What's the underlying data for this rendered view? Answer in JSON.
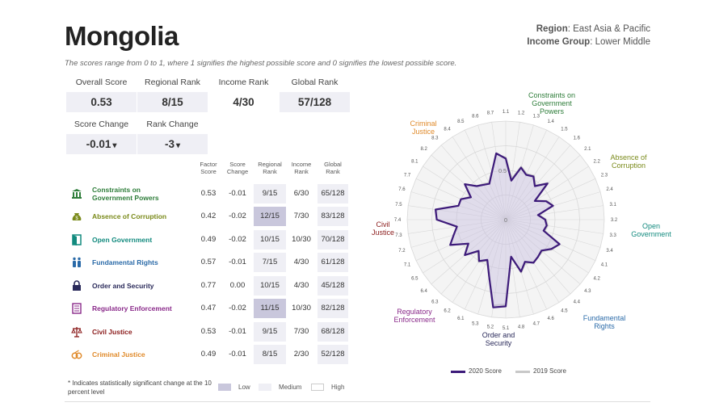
{
  "header": {
    "title": "Mongolia",
    "region_label": "Region",
    "region_value": "East Asia & Pacific",
    "income_label": "Income Group",
    "income_value": "Lower Middle",
    "subtitle": "The scores range from 0 to 1, where 1 signifies the highest possible score and 0 signifies the lowest possible score."
  },
  "summary": {
    "overall_score_label": "Overall Score",
    "overall_score": "0.53",
    "regional_rank_label": "Regional Rank",
    "regional_rank": "8/15",
    "income_rank_label": "Income Rank",
    "income_rank": "4/30",
    "global_rank_label": "Global Rank",
    "global_rank": "57/128",
    "score_change_label": "Score Change",
    "score_change": "-0.01",
    "rank_change_label": "Rank Change",
    "rank_change": "-3",
    "down_arrow": "▾"
  },
  "factor_headers": {
    "factor_score": [
      "Factor",
      "Score"
    ],
    "score_change": [
      "Score",
      "Change"
    ],
    "regional_rank": [
      "Regional",
      "Rank"
    ],
    "income_rank": [
      "Income",
      "Rank"
    ],
    "global_rank": [
      "Global",
      "Rank"
    ]
  },
  "factors": [
    {
      "name": [
        "Constraints on",
        "Government Powers"
      ],
      "color": "#2e7d3a",
      "score": "0.53",
      "change": "-0.01",
      "regional": "9/15",
      "income": "6/30",
      "global": "65/128",
      "shade": [
        "light",
        "white",
        "light"
      ]
    },
    {
      "name": [
        "Absence of Corruption"
      ],
      "color": "#7a8a1a",
      "score": "0.42",
      "change": "-0.02",
      "regional": "12/15",
      "income": "7/30",
      "global": "83/128",
      "shade": [
        "dark",
        "white",
        "light"
      ]
    },
    {
      "name": [
        "Open Government"
      ],
      "color": "#128a7e",
      "score": "0.49",
      "change": "-0.02",
      "regional": "10/15",
      "income": "10/30",
      "global": "70/128",
      "shade": [
        "light",
        "white",
        "light"
      ]
    },
    {
      "name": [
        "Fundamental Rights"
      ],
      "color": "#2a6aa8",
      "score": "0.57",
      "change": "-0.01",
      "regional": "7/15",
      "income": "4/30",
      "global": "61/128",
      "shade": [
        "light",
        "white",
        "light"
      ]
    },
    {
      "name": [
        "Order and Security"
      ],
      "color": "#2a2a5a",
      "score": "0.77",
      "change": "0.00",
      "regional": "10/15",
      "income": "4/30",
      "global": "45/128",
      "shade": [
        "light",
        "white",
        "light"
      ]
    },
    {
      "name": [
        "Regulatory Enforcement"
      ],
      "color": "#8a2a8a",
      "score": "0.47",
      "change": "-0.02",
      "regional": "11/15",
      "income": "10/30",
      "global": "82/128",
      "shade": [
        "dark",
        "white",
        "light"
      ]
    },
    {
      "name": [
        "Civil Justice"
      ],
      "color": "#8a1a1a",
      "score": "0.53",
      "change": "-0.01",
      "regional": "9/15",
      "income": "7/30",
      "global": "68/128",
      "shade": [
        "light",
        "white",
        "light"
      ]
    },
    {
      "name": [
        "Criminal Justice"
      ],
      "color": "#e08a2a",
      "score": "0.49",
      "change": "-0.01",
      "regional": "8/15",
      "income": "2/30",
      "global": "52/128",
      "shade": [
        "light",
        "white",
        "light"
      ]
    }
  ],
  "footnote": "* Indicates statistically significant change at the 10 percent level",
  "legend": {
    "low": "Low",
    "medium": "Medium",
    "high": "High"
  },
  "radar": {
    "labels": {
      "constraints": [
        "Constraints on",
        "Government",
        "Powers"
      ],
      "corruption": [
        "Absence of",
        "Corruption"
      ],
      "open": [
        "Open",
        "Government"
      ],
      "rights": [
        "Fundamental",
        "Rights"
      ],
      "order": [
        "Order and",
        "Security"
      ],
      "regulatory": [
        "Regulatory",
        "Enforcement"
      ],
      "civil": [
        "Civil",
        "Justice"
      ],
      "criminal": [
        "Criminal",
        "Justice"
      ]
    },
    "center_label": "0",
    "ring_label": "0.5",
    "legend_2020": "2020 Score",
    "legend_2019": "2019 Score",
    "color_2020": "#3d1a7a",
    "color_2019": "#c8c8c8",
    "spoke_labels": [
      "1.1",
      "1.2",
      "1.3",
      "1.4",
      "1.5",
      "1.6",
      "2.1",
      "2.2",
      "2.3",
      "2.4",
      "3.1",
      "3.2",
      "3.3",
      "3.4",
      "4.1",
      "4.2",
      "4.3",
      "4.4",
      "4.5",
      "4.6",
      "4.7",
      "4.8",
      "5.1",
      "5.2",
      "5.3",
      "6.1",
      "6.2",
      "6.3",
      "6.4",
      "6.5",
      "7.1",
      "7.2",
      "7.3",
      "7.4",
      "7.5",
      "7.6",
      "7.7",
      "8.1",
      "8.2",
      "8.3",
      "8.4",
      "8.5",
      "8.6",
      "8.7"
    ],
    "values_2020": [
      0.62,
      0.4,
      0.55,
      0.5,
      0.52,
      0.45,
      0.56,
      0.35,
      0.45,
      0.5,
      0.33,
      0.4,
      0.42,
      0.4,
      0.6,
      0.55,
      0.48,
      0.5,
      0.52,
      0.47,
      0.55,
      0.38,
      0.88,
      0.9,
      0.6,
      0.45,
      0.5,
      0.42,
      0.55,
      0.45,
      0.62,
      0.55,
      0.5,
      0.7,
      0.72,
      0.5,
      0.5,
      0.42,
      0.55,
      0.45,
      0.42,
      0.4,
      0.5,
      0.68
    ],
    "values_2019": [
      0.63,
      0.42,
      0.56,
      0.51,
      0.53,
      0.46,
      0.57,
      0.36,
      0.46,
      0.5,
      0.34,
      0.41,
      0.43,
      0.41,
      0.6,
      0.56,
      0.49,
      0.5,
      0.52,
      0.48,
      0.56,
      0.38,
      0.86,
      0.88,
      0.6,
      0.46,
      0.51,
      0.43,
      0.55,
      0.46,
      0.62,
      0.55,
      0.5,
      0.7,
      0.71,
      0.5,
      0.5,
      0.43,
      0.55,
      0.45,
      0.43,
      0.41,
      0.5,
      0.67
    ]
  }
}
